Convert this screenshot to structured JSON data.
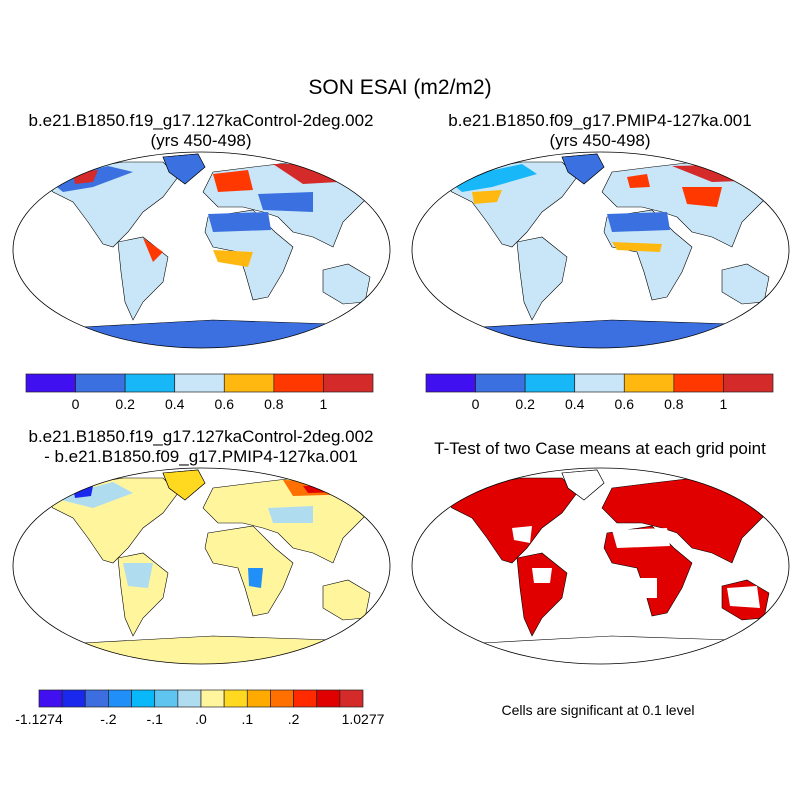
{
  "title": "SON ESAI (m2/m2)",
  "panels": [
    {
      "title_line1": "b.e21.B1850.f19_g17.127kaControl-2deg.002",
      "title_line2": "(yrs 450-498)"
    },
    {
      "title_line1": "b.e21.B1850.f09_g17.PMIP4-127ka.001",
      "title_line2": "(yrs 450-498)"
    },
    {
      "title_line1": "b.e21.B1850.f19_g17.127kaControl-2deg.002",
      "title_line2": "- b.e21.B1850.f09_g17.PMIP4-127ka.001"
    },
    {
      "title_line1": "T-Test of two Case means at each grid point",
      "note": "Cells are significant at 0.1 level"
    }
  ],
  "colorbar_abs": {
    "colors": [
      "#4010f0",
      "#3a70e0",
      "#18b8f8",
      "#c8e6f7",
      "#ffb810",
      "#ff3800",
      "#d42a2a"
    ],
    "labels": [
      "0",
      "0.2",
      "0.4",
      "0.6",
      "0.8",
      "1"
    ]
  },
  "colorbar_diff": {
    "colors": [
      "#4010f0",
      "#1a28ee",
      "#3c6ee0",
      "#2090f8",
      "#08b8f8",
      "#60c4f0",
      "#b0dcf0",
      "#fff59d",
      "#ffd820",
      "#ffaa00",
      "#ff7000",
      "#ff2a00",
      "#e00000",
      "#d42a2a"
    ],
    "labels": [
      "-1.1274",
      "-.2",
      "-.1",
      ".0",
      ".1",
      ".2",
      "1.0277"
    ]
  },
  "significance_color": "#e00000"
}
